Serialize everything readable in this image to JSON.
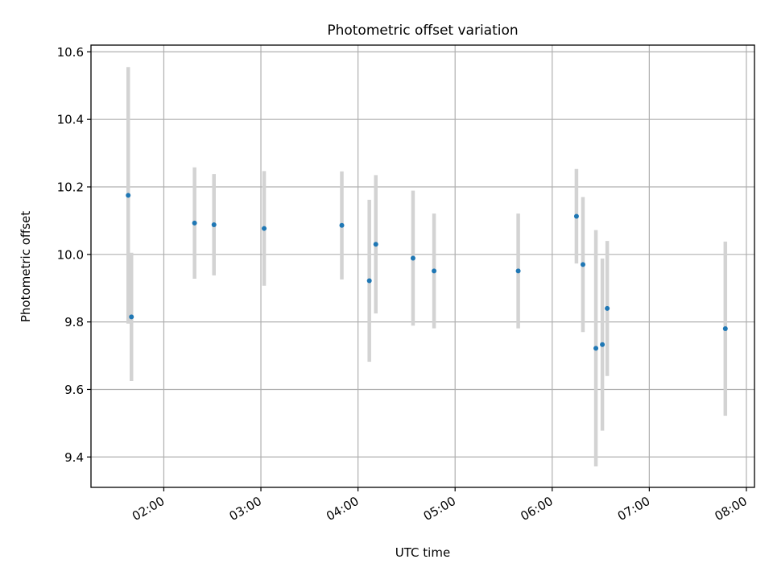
{
  "chart_data": {
    "type": "scatter",
    "title": "Photometric offset variation",
    "xlabel": "UTC time",
    "ylabel": "Photometric offset",
    "x_type": "time",
    "xlim": [
      "01:15",
      "08:05"
    ],
    "ylim": [
      9.31,
      10.62
    ],
    "x_ticks": [
      "02:00",
      "03:00",
      "04:00",
      "05:00",
      "06:00",
      "07:00",
      "08:00"
    ],
    "y_ticks": [
      "9.4",
      "9.6",
      "9.8",
      "10.0",
      "10.2",
      "10.4",
      "10.6"
    ],
    "grid": true,
    "legend": "none",
    "colors": {
      "marker": "#1f77b4",
      "errorbar": "#d3d3d3",
      "grid": "#b0b0b0",
      "axes": "#000000"
    },
    "series": [
      {
        "points": [
          {
            "x": "01:38",
            "y": 10.175,
            "yerr": 0.38
          },
          {
            "x": "01:40",
            "y": 9.815,
            "yerr": 0.19
          },
          {
            "x": "02:19",
            "y": 10.093,
            "yerr": 0.165
          },
          {
            "x": "02:31",
            "y": 10.088,
            "yerr": 0.15
          },
          {
            "x": "03:02",
            "y": 10.077,
            "yerr": 0.17
          },
          {
            "x": "03:50",
            "y": 10.086,
            "yerr": 0.16
          },
          {
            "x": "04:07",
            "y": 9.922,
            "yerr": 0.24
          },
          {
            "x": "04:11",
            "y": 10.03,
            "yerr": 0.205
          },
          {
            "x": "04:34",
            "y": 9.989,
            "yerr": 0.2
          },
          {
            "x": "04:47",
            "y": 9.951,
            "yerr": 0.17
          },
          {
            "x": "05:39",
            "y": 9.951,
            "yerr": 0.17
          },
          {
            "x": "06:15",
            "y": 10.113,
            "yerr": 0.14
          },
          {
            "x": "06:19",
            "y": 9.97,
            "yerr": 0.2
          },
          {
            "x": "06:27",
            "y": 9.722,
            "yerr": 0.35
          },
          {
            "x": "06:31",
            "y": 9.733,
            "yerr": 0.255
          },
          {
            "x": "06:34",
            "y": 9.84,
            "yerr": 0.2
          },
          {
            "x": "07:47",
            "y": 9.78,
            "yerr": 0.258
          }
        ]
      }
    ]
  }
}
